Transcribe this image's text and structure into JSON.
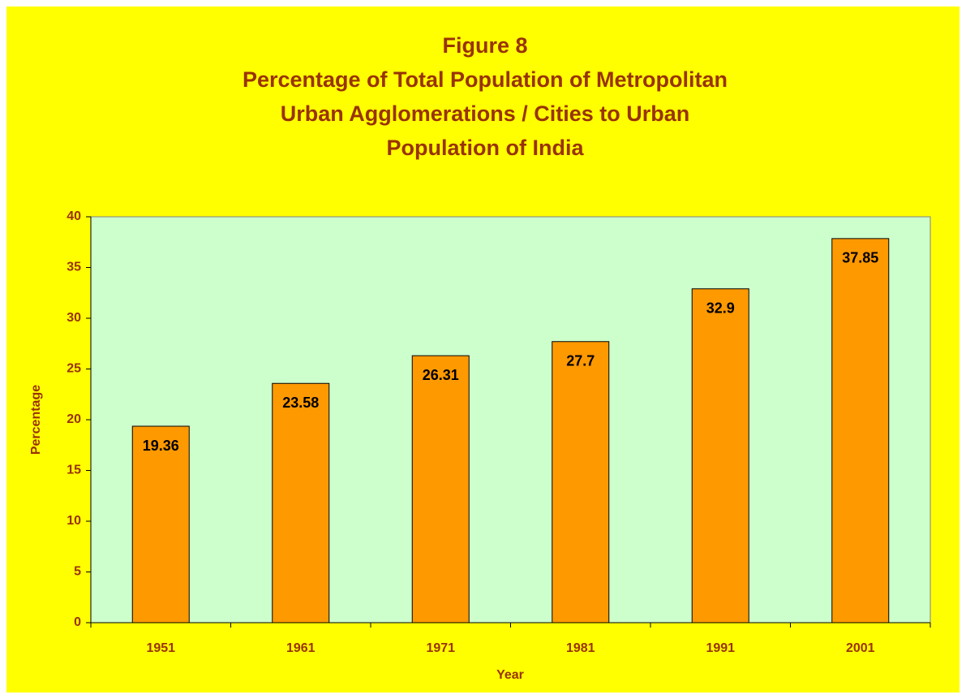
{
  "chart_data": {
    "type": "bar",
    "title": [
      "Figure 8",
      "Percentage of Total Population of Metropolitan",
      "Urban Agglomerations / Cities to Urban",
      "Population of India"
    ],
    "x_label": "Year",
    "y_label": "Percentage",
    "categories": [
      "1951",
      "1961",
      "1971",
      "1981",
      "1991",
      "2001"
    ],
    "values": [
      19.36,
      23.58,
      26.31,
      27.7,
      32.9,
      37.85
    ],
    "color": "#ff9900",
    "ylim": [
      0,
      40
    ],
    "yticks": [
      0,
      5,
      10,
      15,
      20,
      25,
      30,
      35,
      40
    ],
    "grid": false
  }
}
